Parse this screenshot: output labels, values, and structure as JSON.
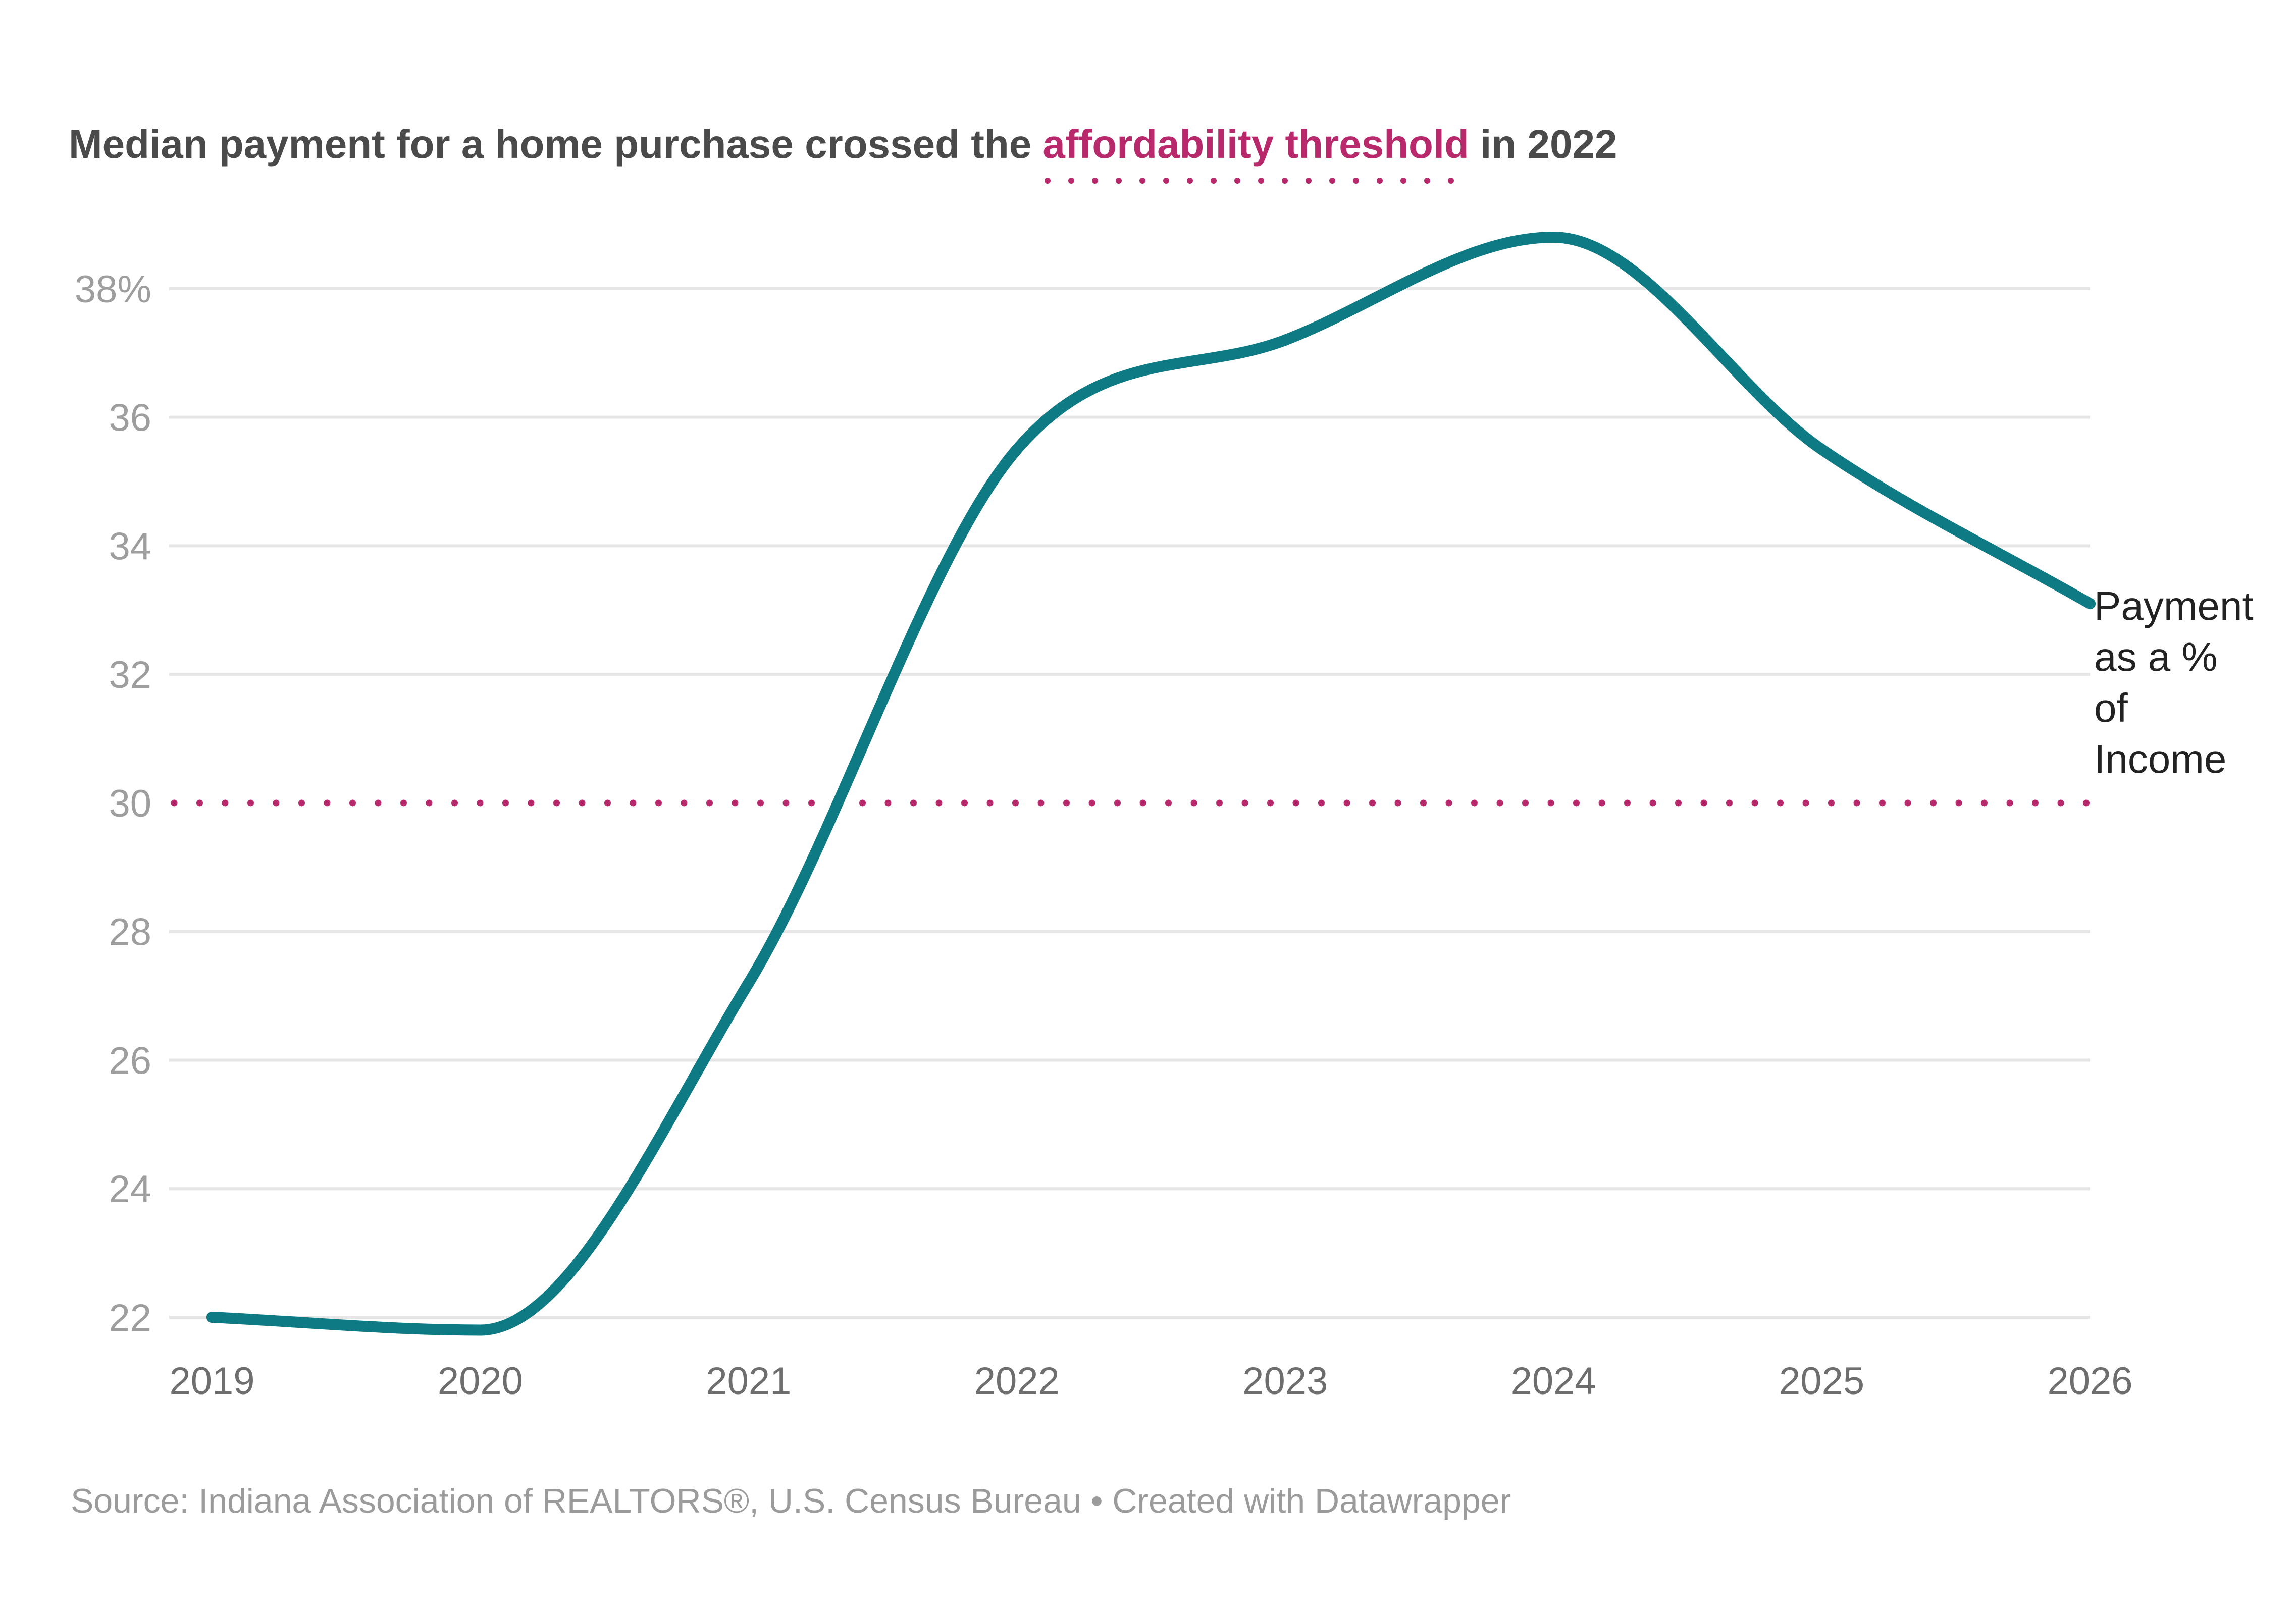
{
  "chart_data": {
    "type": "line",
    "title_parts": {
      "before": "Median payment for a home purchase crossed the ",
      "highlight": "affordability threshold",
      "after": " in 2022"
    },
    "source": "Source: Indiana Association of REALTORS®, U.S. Census Bureau • Created with Datawrapper",
    "x": [
      2019,
      2020,
      2021,
      2022,
      2023,
      2024,
      2025,
      2026
    ],
    "x_tick_labels": [
      "2019",
      "2020",
      "2021",
      "2022",
      "2023",
      "2024",
      "2025",
      "2026"
    ],
    "xlim": [
      2019,
      2026
    ],
    "ylim": [
      22,
      38.8
    ],
    "y_ticks": [
      22,
      24,
      26,
      28,
      30,
      32,
      34,
      36,
      38
    ],
    "y_tick_labels": [
      "22",
      "24",
      "26",
      "28",
      "30",
      "32",
      "34",
      "36",
      "38%"
    ],
    "grid": true,
    "series": [
      {
        "name": "Payment as a % of Income",
        "name_lines": [
          "Payment",
          "as a %",
          "of",
          "Income"
        ],
        "color": "#0e7a83",
        "values": [
          22.0,
          21.8,
          27.2,
          35.5,
          37.2,
          38.8,
          35.5,
          33.1
        ]
      }
    ],
    "threshold": {
      "value": 30,
      "color": "#b8296b",
      "style": "dotted"
    },
    "colors": {
      "gridline": "#e6e6e6",
      "title_highlight": "#b8296b"
    }
  }
}
